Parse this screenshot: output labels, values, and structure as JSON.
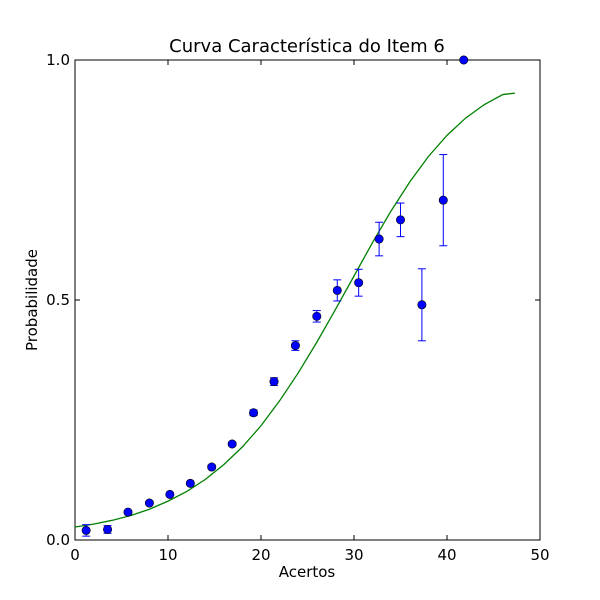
{
  "chart_data": {
    "type": "scatter",
    "title": "Curva Característica do Item 6",
    "xlabel": "Acertos",
    "ylabel": "Probabilidade",
    "xlim": [
      0,
      50
    ],
    "ylim": [
      0,
      1
    ],
    "xticks": [
      "0",
      "10",
      "20",
      "30",
      "40",
      "50"
    ],
    "yticks": [
      "0.0",
      "0.5",
      "1.0"
    ],
    "xtick_values": [
      0,
      10,
      20,
      30,
      40,
      50
    ],
    "ytick_values": [
      0,
      0.5,
      1.0
    ],
    "grid": false,
    "colors": {
      "points": "#0000ff",
      "curve": "#008000"
    },
    "series": [
      {
        "kind": "errorbar",
        "x": [
          1.2,
          3.5,
          5.7,
          8.0,
          10.2,
          12.4,
          14.7,
          16.9,
          19.2,
          21.4,
          23.7,
          26.0,
          28.2,
          30.5,
          32.7,
          35.0,
          37.3,
          39.6,
          41.8
        ],
        "y": [
          0.02,
          0.022,
          0.058,
          0.077,
          0.095,
          0.118,
          0.152,
          0.2,
          0.265,
          0.33,
          0.405,
          0.466,
          0.52,
          0.536,
          0.627,
          0.667,
          0.49,
          0.708,
          1.0
        ],
        "yerr": [
          0.012,
          0.008,
          0.004,
          0.003,
          0.003,
          0.003,
          0.004,
          0.004,
          0.006,
          0.008,
          0.01,
          0.012,
          0.022,
          0.028,
          0.035,
          0.035,
          0.075,
          0.095,
          0.0
        ]
      },
      {
        "kind": "line",
        "x": [
          0,
          2,
          4,
          6,
          8,
          10,
          12,
          14,
          16,
          18,
          20,
          22,
          24,
          26,
          28,
          30,
          32,
          34,
          36,
          38,
          40,
          42,
          44,
          46,
          47.3
        ],
        "y": [
          0.027,
          0.033,
          0.041,
          0.051,
          0.064,
          0.081,
          0.101,
          0.126,
          0.157,
          0.194,
          0.238,
          0.29,
          0.348,
          0.412,
          0.48,
          0.55,
          0.62,
          0.686,
          0.746,
          0.799,
          0.843,
          0.879,
          0.907,
          0.928,
          0.931
        ]
      }
    ]
  }
}
